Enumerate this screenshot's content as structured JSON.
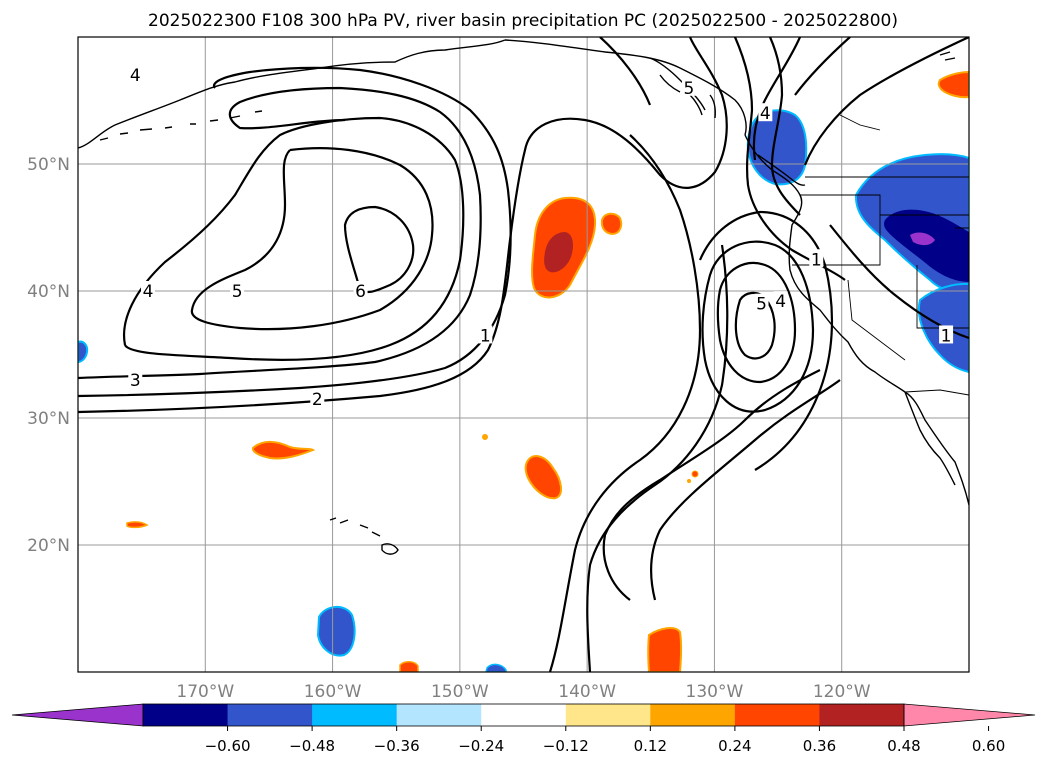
{
  "chart_data": {
    "type": "map",
    "title": "2025022300 F108 300 hPa PV, river basin precipitation PC (2025022500 - 2025022800)",
    "x_ticks": [
      "170°W",
      "160°W",
      "150°W",
      "140°W",
      "130°W",
      "120°W"
    ],
    "y_ticks": [
      "50°N",
      "40°N",
      "30°N",
      "20°N"
    ],
    "lon_range": [
      -180,
      -110
    ],
    "lat_range": [
      10,
      60
    ],
    "contour_labels": [
      {
        "text": "4",
        "lon": -174.5,
        "lat": 40.0
      },
      {
        "text": "5",
        "lon": -167.5,
        "lat": 40.0
      },
      {
        "text": "6",
        "lon": -157.8,
        "lat": 40.0
      },
      {
        "text": "3",
        "lon": -175.5,
        "lat": 33.0
      },
      {
        "text": "2",
        "lon": -161.2,
        "lat": 31.5
      },
      {
        "text": "1",
        "lon": -148.0,
        "lat": 36.5
      },
      {
        "text": "5",
        "lon": -132.0,
        "lat": 56.0
      },
      {
        "text": "4",
        "lon": -126.0,
        "lat": 54.0
      },
      {
        "text": "5",
        "lon": -126.3,
        "lat": 39.0
      },
      {
        "text": "4",
        "lon": -124.8,
        "lat": 39.2
      },
      {
        "text": "1",
        "lon": -122.0,
        "lat": 42.5
      },
      {
        "text": "1",
        "lon": -111.8,
        "lat": 36.5
      },
      {
        "text": "4",
        "lon": -175.5,
        "lat": 57.0
      }
    ],
    "pv_contour_values": [
      1,
      2,
      3,
      4,
      5,
      6
    ],
    "colorbar": {
      "ticks": [
        "−0.60",
        "−0.48",
        "−0.36",
        "−0.24",
        "−0.12",
        "0.12",
        "0.24",
        "0.36",
        "0.48",
        "0.60"
      ],
      "colors": [
        "#9933cc",
        "#000088",
        "#3355cc",
        "#00bbff",
        "#b3e5ff",
        "#ffffff",
        "#ffe68a",
        "#ffa500",
        "#ff4500",
        "#b22222",
        "#ff88aa"
      ],
      "extend": "both"
    },
    "grid": true
  }
}
